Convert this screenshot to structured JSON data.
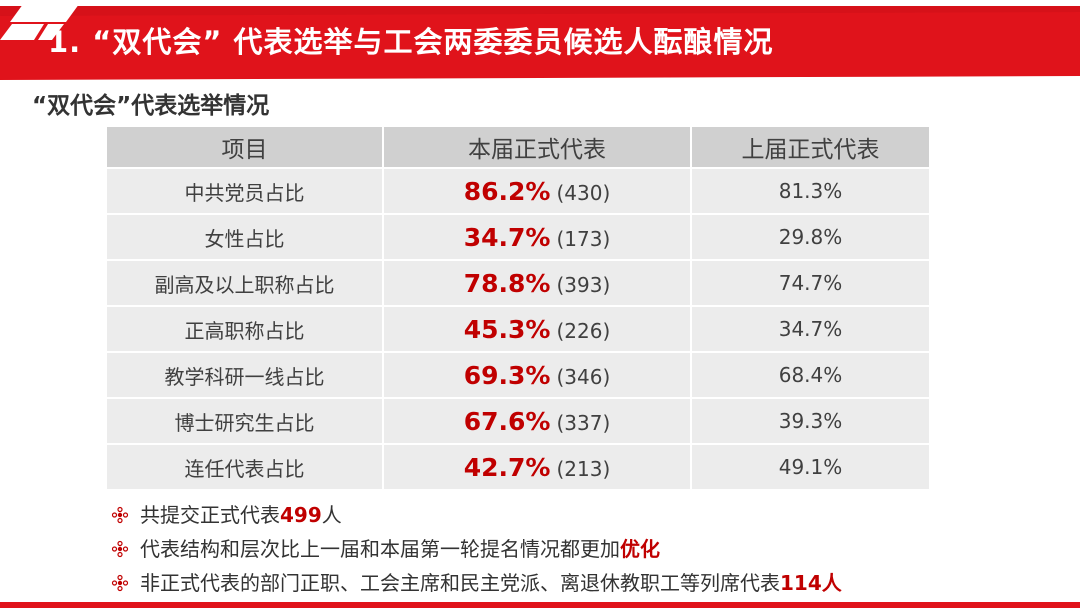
{
  "header": {
    "title": "1. “双代会”  代表选举与工会两委委员候选人酝酿情况",
    "brand_color": "#e0131b"
  },
  "section": {
    "subtitle": "“双代会”代表选举情况"
  },
  "table": {
    "headers": [
      "项目",
      "本届正式代表",
      "上届正式代表"
    ],
    "rows": [
      {
        "item": "中共党员占比",
        "current_pct": "86.2%",
        "current_count": "(430)",
        "previous": "81.3%"
      },
      {
        "item": "女性占比",
        "current_pct": "34.7%",
        "current_count": "(173)",
        "previous": "29.8%"
      },
      {
        "item": "副高及以上职称占比",
        "current_pct": "78.8%",
        "current_count": "(393)",
        "previous": "74.7%"
      },
      {
        "item": "正高职称占比",
        "current_pct": "45.3%",
        "current_count": "(226)",
        "previous": "34.7%"
      },
      {
        "item": "教学科研一线占比",
        "current_pct": "69.3%",
        "current_count": "(346)",
        "previous": "68.4%"
      },
      {
        "item": "博士研究生占比",
        "current_pct": "67.6%",
        "current_count": "(337)",
        "previous": "39.3%"
      },
      {
        "item": "连任代表占比",
        "current_pct": "42.7%",
        "current_count": "(213)",
        "previous": "49.1%"
      }
    ]
  },
  "notes": [
    {
      "before": "共提交正式代表",
      "highlight": "499",
      "after": "人"
    },
    {
      "before": "代表结构和层次比上一届和本届第一轮提名情况都更加",
      "highlight": "优化",
      "after": ""
    },
    {
      "before": "非正式代表的部门正职、工会主席和民主党派、离退休教职工等列席代表",
      "highlight": "114人",
      "after": ""
    }
  ],
  "icons": {
    "logo": "brand-logo-icon",
    "bullet": "flower-bullet-icon"
  }
}
